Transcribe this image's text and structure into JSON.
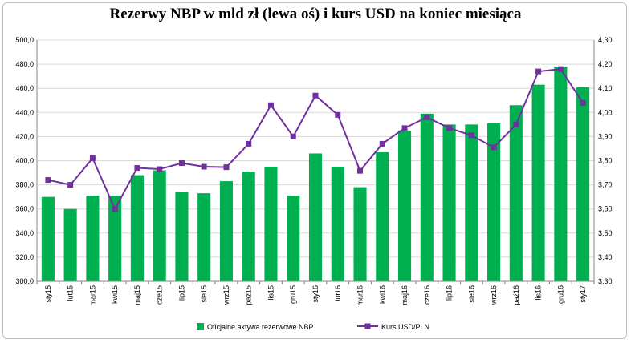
{
  "chart_data": {
    "type": "bar",
    "title": "Rezerwy NBP w mld zł (lewa oś) i kurs USD na koniec miesiąca",
    "categories": [
      "sty15",
      "lut15",
      "mar15",
      "kwi15",
      "maj15",
      "cze15",
      "lip15",
      "sie15",
      "wrz15",
      "paź15",
      "lis15",
      "gru15",
      "sty16",
      "lut16",
      "mar16",
      "kwi16",
      "maj16",
      "cze16",
      "lip16",
      "sie16",
      "wrz16",
      "paź16",
      "lis16",
      "gru16",
      "sty17"
    ],
    "series": [
      {
        "name": "Oficjalne aktywa rezerwowe NBP",
        "type": "bar",
        "axis": "left",
        "color": "#00b050",
        "values": [
          370,
          360,
          371,
          371,
          388,
          392,
          374,
          373,
          383,
          391,
          395,
          371,
          406,
          395,
          378,
          407,
          425,
          439,
          430,
          430,
          431,
          446,
          463,
          478,
          461
        ]
      },
      {
        "name": "Kurs USD/PLN",
        "type": "line",
        "axis": "right",
        "color": "#7030a0",
        "values": [
          3.72,
          3.7,
          3.81,
          3.6,
          3.77,
          3.765,
          3.79,
          3.775,
          3.773,
          3.87,
          4.03,
          3.9,
          4.07,
          3.99,
          3.758,
          3.87,
          3.935,
          3.98,
          3.935,
          3.905,
          3.855,
          3.95,
          4.17,
          4.18,
          4.04
        ]
      }
    ],
    "y_left": {
      "min": 300,
      "max": 500,
      "ticks": [
        "300,0",
        "320,0",
        "340,0",
        "360,0",
        "380,0",
        "400,0",
        "420,0",
        "440,0",
        "460,0",
        "480,0",
        "500,0"
      ]
    },
    "y_right": {
      "min": 3.3,
      "max": 4.3,
      "ticks": [
        "3,30",
        "3,40",
        "3,50",
        "3,60",
        "3,70",
        "3,80",
        "3,90",
        "4,00",
        "4,10",
        "4,20",
        "4,30"
      ]
    },
    "grid": true,
    "legend_position": "bottom"
  }
}
